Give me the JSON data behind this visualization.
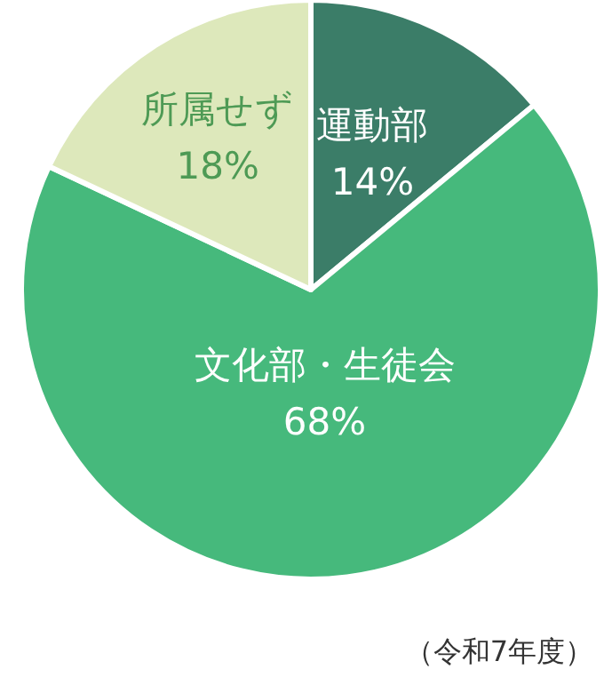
{
  "chart_data": {
    "type": "pie",
    "categories": [
      "運動部",
      "文化部・生徒会",
      "所属せず"
    ],
    "values": [
      14,
      68,
      18
    ],
    "colors": [
      "#3b7d68",
      "#46b97c",
      "#dde8bb"
    ],
    "value_labels": [
      "14%",
      "68%",
      "18%"
    ],
    "annotations": [
      "（令和7年度）"
    ]
  }
}
